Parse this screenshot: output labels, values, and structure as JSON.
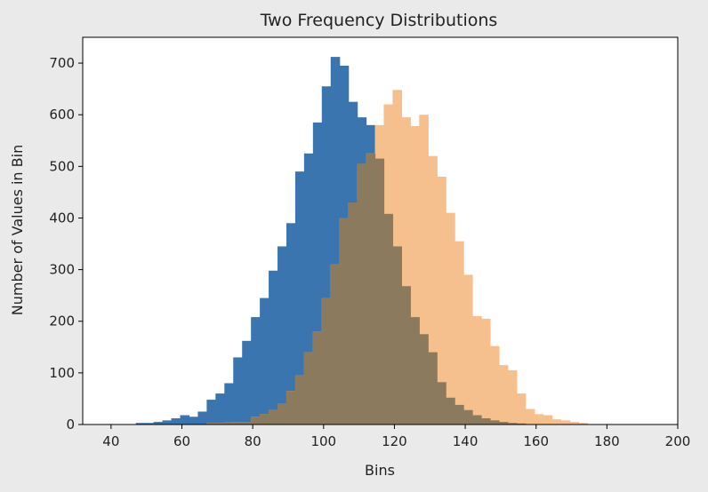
{
  "chart_data": {
    "type": "histogram",
    "title": "Two Frequency Distributions",
    "xlabel": "Bins",
    "ylabel": "Number of Values in Bin",
    "xlim": [
      32,
      200
    ],
    "ylim": [
      0,
      750
    ],
    "xticks": [
      "40",
      "60",
      "80",
      "100",
      "120",
      "140",
      "160",
      "180",
      "200"
    ],
    "yticks": [
      "0",
      "100",
      "200",
      "300",
      "400",
      "500",
      "600",
      "700"
    ],
    "grid": false,
    "legend": "none",
    "overlap_color": "#8c7a5f",
    "series": [
      {
        "color": "#3a75b0",
        "bin_start": 39.5,
        "bin_width": 2.5,
        "values": [
          0,
          0,
          0,
          3,
          3,
          5,
          8,
          12,
          18,
          15,
          25,
          48,
          60,
          80,
          130,
          162,
          208,
          245,
          298,
          345,
          390,
          490,
          525,
          585,
          655,
          712,
          695,
          625,
          595,
          580,
          515,
          408,
          345,
          268,
          208,
          175,
          140,
          82,
          52,
          38,
          28,
          18,
          12,
          8,
          5,
          3,
          2,
          0
        ]
      },
      {
        "color": "#f5c08d",
        "bin_start": 67.0,
        "bin_width": 2.5,
        "values": [
          3,
          3,
          4,
          5,
          5,
          15,
          20,
          28,
          40,
          65,
          95,
          140,
          180,
          245,
          310,
          400,
          430,
          505,
          525,
          580,
          620,
          648,
          595,
          578,
          600,
          520,
          480,
          410,
          355,
          290,
          210,
          205,
          152,
          115,
          105,
          60,
          30,
          20,
          18,
          10,
          8,
          5,
          3,
          0
        ]
      }
    ]
  }
}
